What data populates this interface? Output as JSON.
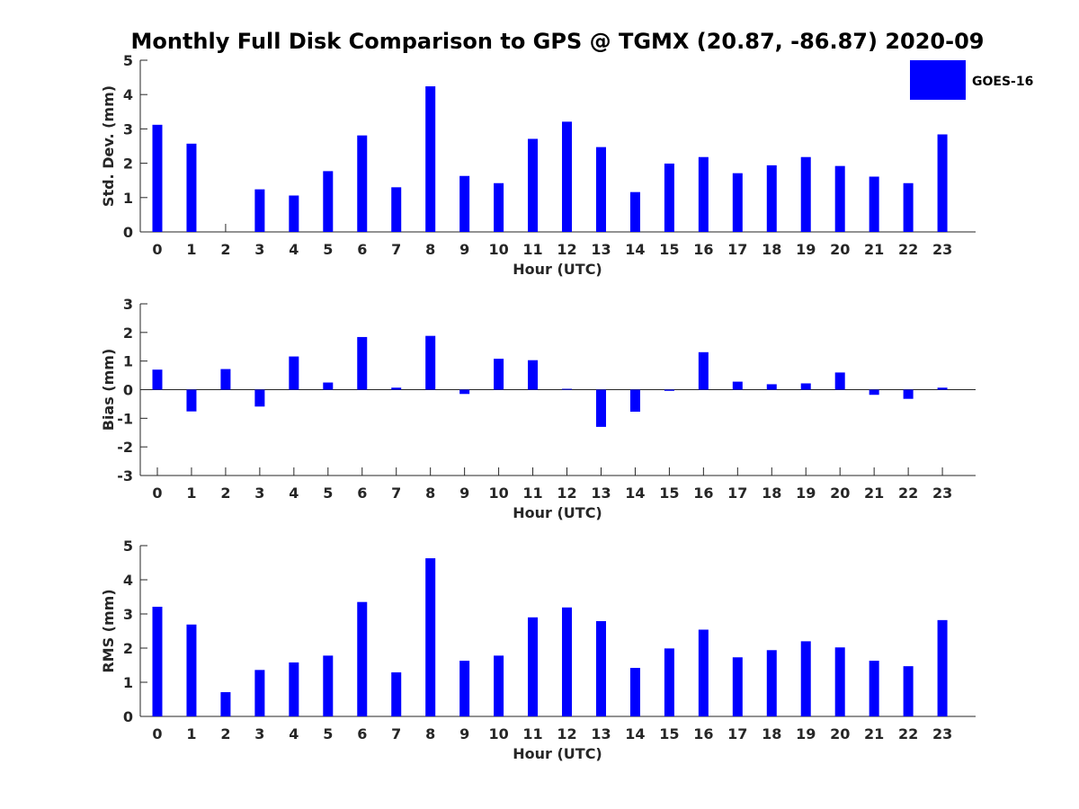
{
  "title": "Monthly Full Disk Comparison to GPS @ TGMX (20.87, -86.87) 2020-09",
  "legend": {
    "label": "GOES-16",
    "color": "#0000ff"
  },
  "chart_data": [
    {
      "type": "bar",
      "title": "Monthly Full Disk Comparison to GPS @ TGMX (20.87, -86.87) 2020-09",
      "xlabel": "Hour (UTC)",
      "ylabel": "Std. Dev. (mm)",
      "ylim": [
        0,
        5
      ],
      "yticks": [
        0,
        1,
        2,
        3,
        4,
        5
      ],
      "categories": [
        "0",
        "1",
        "2",
        "3",
        "4",
        "5",
        "6",
        "7",
        "8",
        "9",
        "10",
        "11",
        "12",
        "13",
        "14",
        "15",
        "16",
        "17",
        "18",
        "19",
        "20",
        "21",
        "22",
        "23"
      ],
      "series": [
        {
          "name": "GOES-16",
          "values": [
            3.12,
            2.57,
            0.0,
            1.24,
            1.06,
            1.77,
            2.81,
            1.3,
            4.24,
            1.63,
            1.42,
            2.71,
            3.21,
            2.47,
            1.16,
            1.99,
            2.18,
            1.71,
            1.94,
            2.18,
            1.92,
            1.61,
            1.42,
            2.84
          ]
        }
      ]
    },
    {
      "type": "bar",
      "xlabel": "Hour (UTC)",
      "ylabel": "Bias (mm)",
      "ylim": [
        -3,
        3
      ],
      "yticks": [
        -3,
        -2,
        -1,
        0,
        1,
        2,
        3
      ],
      "categories": [
        "0",
        "1",
        "2",
        "3",
        "4",
        "5",
        "6",
        "7",
        "8",
        "9",
        "10",
        "11",
        "12",
        "13",
        "14",
        "15",
        "16",
        "17",
        "18",
        "19",
        "20",
        "21",
        "22",
        "23"
      ],
      "series": [
        {
          "name": "GOES-16",
          "values": [
            0.7,
            -0.76,
            0.72,
            -0.59,
            1.16,
            0.25,
            1.84,
            0.07,
            1.88,
            -0.15,
            1.08,
            1.03,
            0.03,
            -1.3,
            -0.77,
            -0.04,
            1.31,
            0.28,
            0.19,
            0.22,
            0.6,
            -0.18,
            -0.32,
            0.07
          ]
        }
      ]
    },
    {
      "type": "bar",
      "xlabel": "Hour (UTC)",
      "ylabel": "RMS (mm)",
      "ylim": [
        0,
        5
      ],
      "yticks": [
        0,
        1,
        2,
        3,
        4,
        5
      ],
      "categories": [
        "0",
        "1",
        "2",
        "3",
        "4",
        "5",
        "6",
        "7",
        "8",
        "9",
        "10",
        "11",
        "12",
        "13",
        "14",
        "15",
        "16",
        "17",
        "18",
        "19",
        "20",
        "21",
        "22",
        "23"
      ],
      "series": [
        {
          "name": "GOES-16",
          "values": [
            3.21,
            2.69,
            0.71,
            1.36,
            1.58,
            1.78,
            3.35,
            1.29,
            4.63,
            1.63,
            1.78,
            2.9,
            3.19,
            2.79,
            1.42,
            1.99,
            2.54,
            1.73,
            1.94,
            2.2,
            2.02,
            1.63,
            1.47,
            2.82
          ]
        }
      ]
    }
  ]
}
